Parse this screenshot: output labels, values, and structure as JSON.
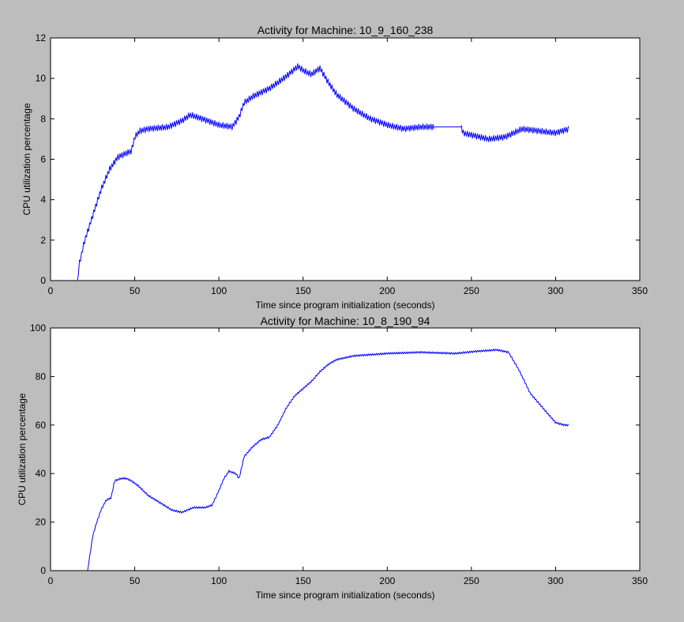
{
  "figure": {
    "background": "#bdbdbd",
    "axes_background": "#ffffff",
    "line_color": "#0000ff"
  },
  "chart_data": [
    {
      "type": "line",
      "title": "Activity for Machine: 10_9_160_238",
      "xlabel": "Time since program initialization (seconds)",
      "ylabel": "CPU utilization percentage",
      "xlim": [
        0,
        350
      ],
      "ylim": [
        0,
        12
      ],
      "xticks": [
        0,
        50,
        100,
        150,
        200,
        250,
        300,
        350
      ],
      "yticks": [
        0,
        2,
        4,
        6,
        8,
        10,
        12
      ],
      "grid": false,
      "series": [
        {
          "color": "#0000ff",
          "points": [
            [
              16,
              0
            ],
            [
              17,
              0.8
            ],
            [
              20,
              1.9
            ],
            [
              25,
              3.2
            ],
            [
              30,
              4.5
            ],
            [
              35,
              5.5
            ],
            [
              40,
              6.1
            ],
            [
              45,
              6.3
            ],
            [
              48,
              6.4
            ],
            [
              50,
              7.1
            ],
            [
              53,
              7.4
            ],
            [
              58,
              7.5
            ],
            [
              70,
              7.6
            ],
            [
              78,
              7.9
            ],
            [
              83,
              8.2
            ],
            [
              90,
              8.0
            ],
            [
              100,
              7.7
            ],
            [
              108,
              7.6
            ],
            [
              112,
              8.1
            ],
            [
              115,
              8.8
            ],
            [
              120,
              9.1
            ],
            [
              130,
              9.5
            ],
            [
              140,
              10.1
            ],
            [
              147,
              10.6
            ],
            [
              150,
              10.4
            ],
            [
              155,
              10.2
            ],
            [
              160,
              10.5
            ],
            [
              165,
              9.8
            ],
            [
              170,
              9.2
            ],
            [
              180,
              8.5
            ],
            [
              190,
              8.0
            ],
            [
              200,
              7.7
            ],
            [
              210,
              7.5
            ],
            [
              220,
              7.6
            ],
            [
              228,
              7.6
            ],
            [
              244,
              7.6
            ],
            [
              245,
              7.3
            ],
            [
              250,
              7.2
            ],
            [
              260,
              7.0
            ],
            [
              270,
              7.1
            ],
            [
              275,
              7.3
            ],
            [
              280,
              7.5
            ],
            [
              290,
              7.4
            ],
            [
              300,
              7.3
            ],
            [
              308,
              7.5
            ]
          ],
          "jitter_amplitude": 0.15,
          "segments": [
            [
              16,
              228
            ],
            [
              228,
              244
            ],
            [
              244,
              308
            ]
          ]
        }
      ]
    },
    {
      "type": "line",
      "title": "Activity for Machine: 10_8_190_94",
      "xlabel": "Time since program initialization (seconds)",
      "ylabel": "CPU utilization percentage",
      "xlim": [
        0,
        350
      ],
      "ylim": [
        0,
        100
      ],
      "xticks": [
        0,
        50,
        100,
        150,
        200,
        250,
        300,
        350
      ],
      "yticks": [
        0,
        20,
        40,
        60,
        80,
        100
      ],
      "grid": false,
      "series": [
        {
          "color": "#0000ff",
          "points": [
            [
              22,
              0
            ],
            [
              25,
              14
            ],
            [
              27,
              19
            ],
            [
              30,
              25
            ],
            [
              33,
              29
            ],
            [
              36,
              30
            ],
            [
              38,
              37
            ],
            [
              42,
              38
            ],
            [
              45,
              38
            ],
            [
              48,
              37
            ],
            [
              52,
              35
            ],
            [
              58,
              31
            ],
            [
              65,
              28
            ],
            [
              72,
              25
            ],
            [
              78,
              24
            ],
            [
              85,
              26
            ],
            [
              92,
              26
            ],
            [
              96,
              27
            ],
            [
              100,
              33
            ],
            [
              103,
              38
            ],
            [
              106,
              41
            ],
            [
              110,
              40
            ],
            [
              112,
              38
            ],
            [
              115,
              47
            ],
            [
              120,
              51
            ],
            [
              125,
              54
            ],
            [
              130,
              55
            ],
            [
              135,
              60
            ],
            [
              140,
              67
            ],
            [
              145,
              72
            ],
            [
              150,
              75
            ],
            [
              155,
              78
            ],
            [
              160,
              82
            ],
            [
              165,
              85
            ],
            [
              170,
              87
            ],
            [
              180,
              88.5
            ],
            [
              200,
              89.5
            ],
            [
              220,
              90
            ],
            [
              240,
              89.5
            ],
            [
              255,
              90.5
            ],
            [
              265,
              91
            ],
            [
              272,
              90
            ],
            [
              278,
              83
            ],
            [
              285,
              73
            ],
            [
              295,
              65
            ],
            [
              300,
              61
            ],
            [
              305,
              60
            ],
            [
              308,
              60
            ]
          ],
          "jitter_amplitude": 0.4,
          "segments": [
            [
              22,
              308
            ]
          ]
        }
      ]
    }
  ]
}
